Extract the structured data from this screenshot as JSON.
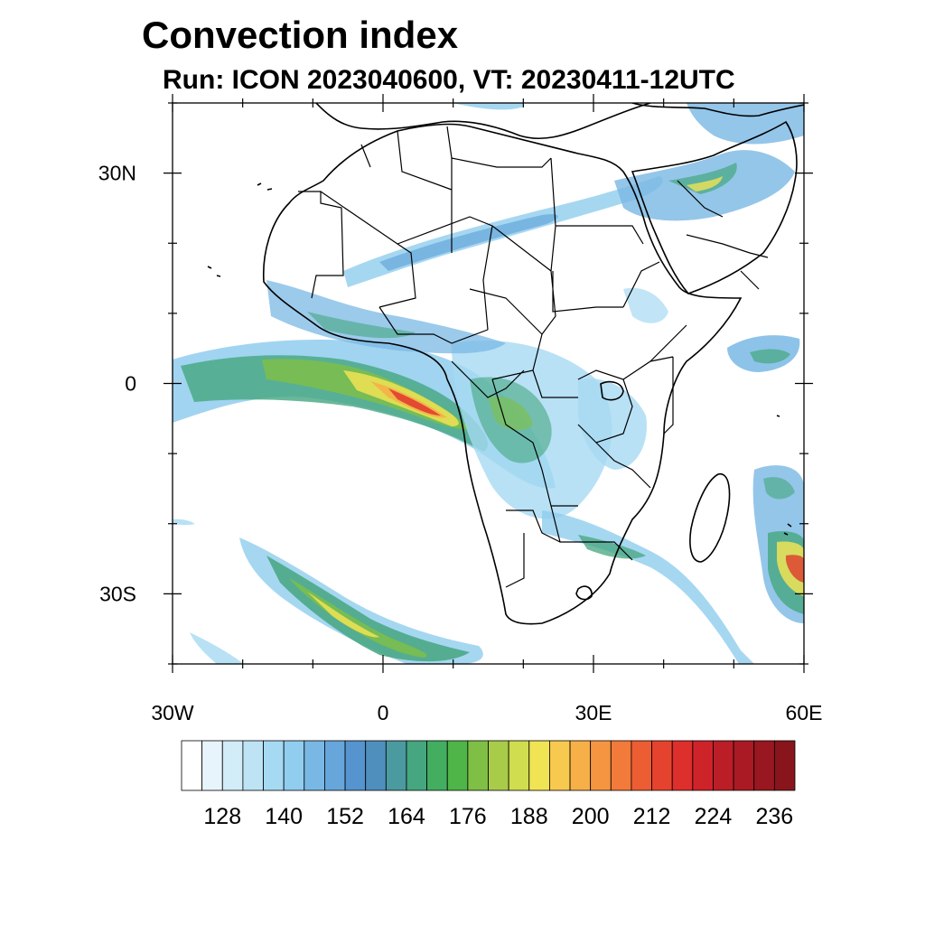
{
  "header": {
    "title": "Convection index",
    "subtitle": "Run: ICON 2023040600,  VT: 20230411-12UTC"
  },
  "map": {
    "extent": {
      "lon": [
        -30,
        60
      ],
      "lat": [
        -40,
        40
      ]
    },
    "lat_ticks": [
      {
        "lat": 30,
        "label": "30N"
      },
      {
        "lat": 0,
        "label": "0"
      },
      {
        "lat": -30,
        "label": "30S"
      }
    ],
    "lon_ticks": [
      {
        "lon": -30,
        "label": "30W"
      },
      {
        "lon": 0,
        "label": "0"
      },
      {
        "lon": 30,
        "label": "30E"
      },
      {
        "lon": 60,
        "label": "60E"
      }
    ],
    "minor_lat": [
      -40,
      -20,
      -10,
      10,
      20,
      40
    ],
    "minor_lon": [
      -20,
      -10,
      10,
      20,
      40,
      50
    ]
  },
  "colorbar": {
    "labels": [
      "128",
      "140",
      "152",
      "164",
      "176",
      "188",
      "200",
      "212",
      "224",
      "236"
    ],
    "colors": [
      "#ffffff",
      "#e8f4fb",
      "#d2ecf8",
      "#bde3f5",
      "#a6daf2",
      "#90cdee",
      "#79b8e4",
      "#67a6da",
      "#5594ce",
      "#4f8fbd",
      "#4a9aa0",
      "#45a67f",
      "#43ad60",
      "#4fb548",
      "#7fbf45",
      "#a8cc4a",
      "#cfdd4f",
      "#f0e354",
      "#f7c94e",
      "#f6b047",
      "#f59541",
      "#f27a3b",
      "#ec5d33",
      "#e5432d",
      "#dd2f2c",
      "#cd2329",
      "#bb1e27",
      "#a91a24",
      "#981720",
      "#88151c"
    ]
  },
  "fields": {
    "convection_colors": {
      "low": "#a6daf2",
      "mid": "#67a6da",
      "green": "#45a67f",
      "bright": "#7fbf45",
      "yellow": "#f0e354",
      "orange": "#f6b047",
      "red": "#dd2f2c"
    }
  }
}
